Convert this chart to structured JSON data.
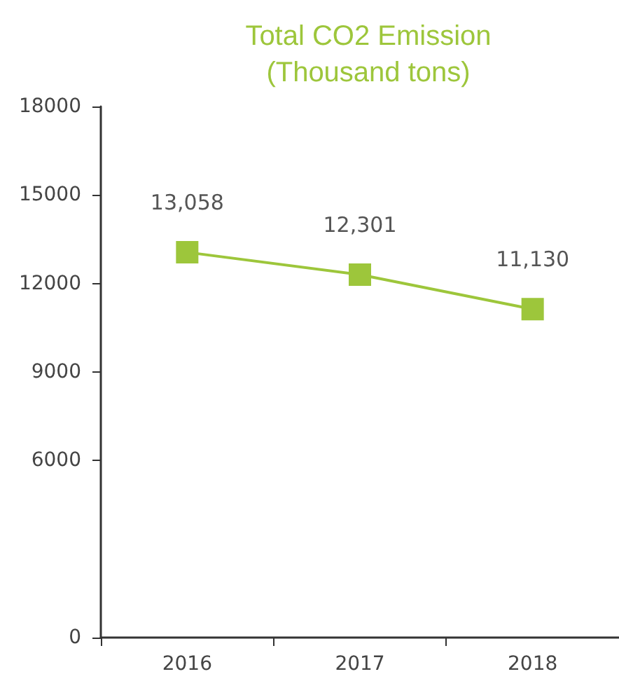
{
  "chart_data": {
    "type": "line",
    "title": "Total CO2 Emission\n(Thousand tons)",
    "categories": [
      "2016",
      "2017",
      "2018"
    ],
    "series": [
      {
        "color": "#9dc63b",
        "values": [
          13058,
          12301,
          11130
        ]
      }
    ],
    "value_labels": [
      "13,058",
      "12,301",
      "11,130"
    ],
    "ylim": [
      0,
      18000
    ],
    "yticks": [
      0,
      6000,
      9000,
      12000,
      15000,
      18000
    ],
    "marker": "square",
    "line_style": "solid",
    "grid": false
  }
}
